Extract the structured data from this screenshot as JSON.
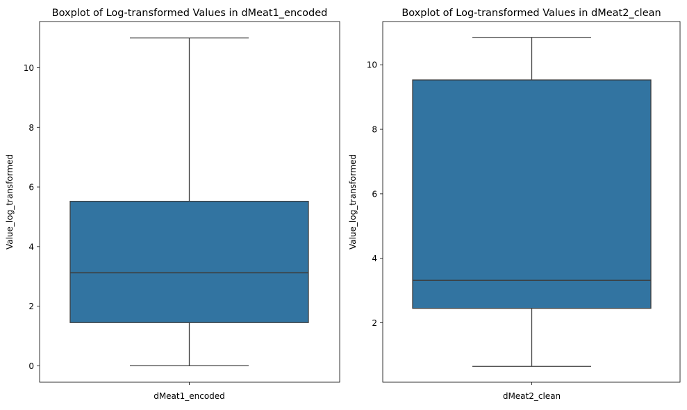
{
  "colors": {
    "box_fill": "#3274a1",
    "line": "#3d3d3d",
    "axes_frame": "#000000",
    "background": "#ffffff"
  },
  "chart_data": [
    {
      "type": "boxplot",
      "title": "Boxplot of Log-transformed Values in dMeat1_encoded",
      "xlabel": "dMeat1_encoded",
      "ylabel": "Value_log_transformed",
      "ylim": [
        -0.55,
        11.55
      ],
      "yticks": [
        0,
        2,
        4,
        6,
        8,
        10
      ],
      "box": {
        "whisker_low": 0.0,
        "q1": 1.45,
        "median": 3.12,
        "q3": 5.52,
        "whisker_high": 11.0
      }
    },
    {
      "type": "boxplot",
      "title": "Boxplot of Log-transformed Values in dMeat2_clean",
      "xlabel": "dMeat2_clean",
      "ylabel": "Value_log_transformed",
      "ylim": [
        0.16,
        11.34
      ],
      "yticks": [
        2,
        4,
        6,
        8,
        10
      ],
      "box": {
        "whisker_low": 0.65,
        "q1": 2.45,
        "median": 3.32,
        "q3": 9.53,
        "whisker_high": 10.85
      }
    }
  ]
}
